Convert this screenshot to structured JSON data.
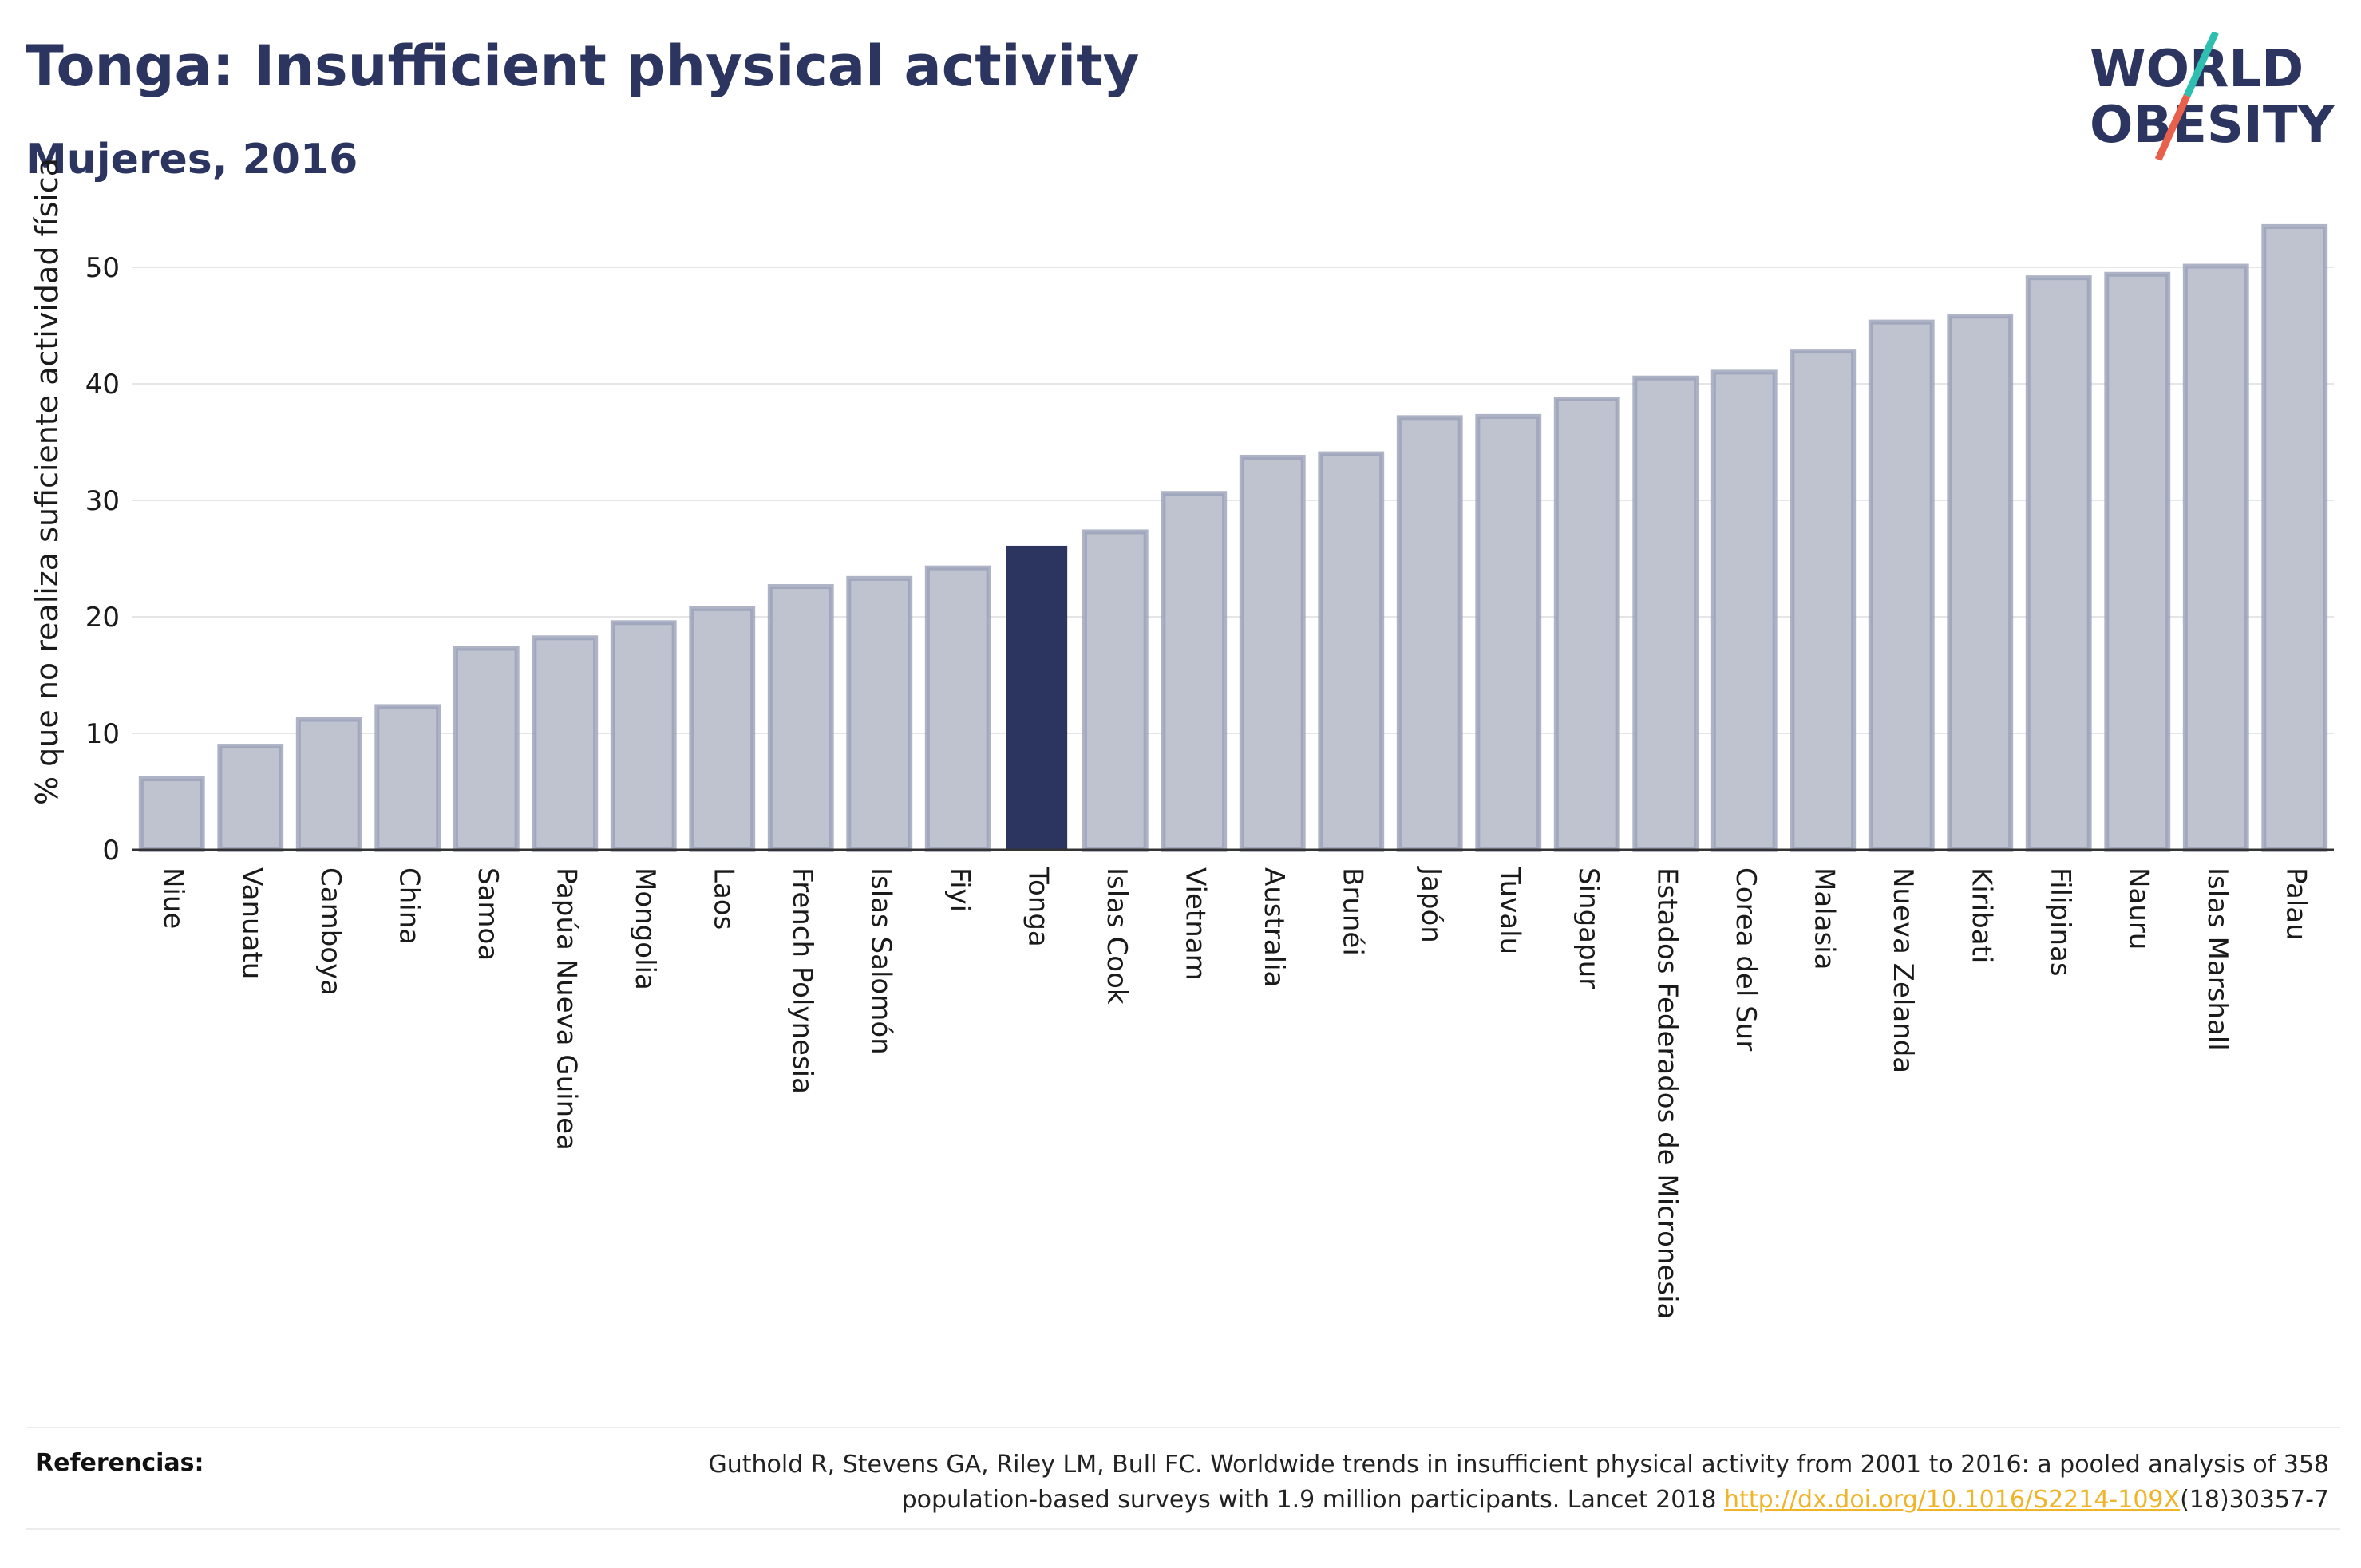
{
  "header": {
    "title": "Tonga: Insufficient physical activity",
    "subtitle": "Mujeres, 2016"
  },
  "logo": {
    "line1": "WORLD",
    "line2": "OBESITY",
    "accent_colors": [
      "#2ebfb0",
      "#e8604c"
    ]
  },
  "colors": {
    "bar": "#bfc3d0",
    "bar_stroke": "#9aa0b8",
    "highlight": "#2b3560",
    "grid": "#e6e6e6",
    "axis": "#333333",
    "text": "#1a1a1a",
    "link": "#f0b429"
  },
  "chart_data": {
    "type": "bar",
    "title": "",
    "xlabel": "",
    "ylabel": "% que no realiza suficiente actividad física",
    "ylim": [
      0,
      55
    ],
    "yticks": [
      0,
      10,
      20,
      30,
      40,
      50
    ],
    "grid": true,
    "highlight": "Tonga",
    "categories": [
      "Niue",
      "Vanuatu",
      "Camboya",
      "China",
      "Samoa",
      "Papúa Nueva Guinea",
      "Mongolia",
      "Laos",
      "French Polynesia",
      "Islas Salomón",
      "Fiyi",
      "Tonga",
      "Islas Cook",
      "Vietnam",
      "Australia",
      "Brunéi",
      "Japón",
      "Tuvalu",
      "Singapur",
      "Estados Federados de Micronesia",
      "Corea del Sur",
      "Malasia",
      "Nueva Zelanda",
      "Kiribati",
      "Filipinas",
      "Nauru",
      "Islas Marshall",
      "Palau"
    ],
    "values": [
      6.1,
      8.9,
      11.2,
      12.3,
      17.3,
      18.2,
      19.5,
      20.7,
      22.6,
      23.3,
      24.2,
      26.1,
      27.3,
      30.6,
      33.7,
      34.0,
      37.1,
      37.2,
      38.7,
      40.5,
      41.0,
      42.8,
      45.3,
      45.8,
      49.1,
      49.4,
      50.1,
      53.5
    ]
  },
  "references": {
    "label": "Referencias:",
    "text_line1": "Guthold R, Stevens GA, Riley LM, Bull FC. Worldwide trends in insufficient physical activity from 2001 to 2016: a pooled analysis of 358",
    "text_line2_pre": "population-based surveys with 1.9 million participants. Lancet 2018 ",
    "link_text": "http://dx.doi.org/10.1016/S2214-109X",
    "text_line2_post": "(18)30357-7"
  }
}
